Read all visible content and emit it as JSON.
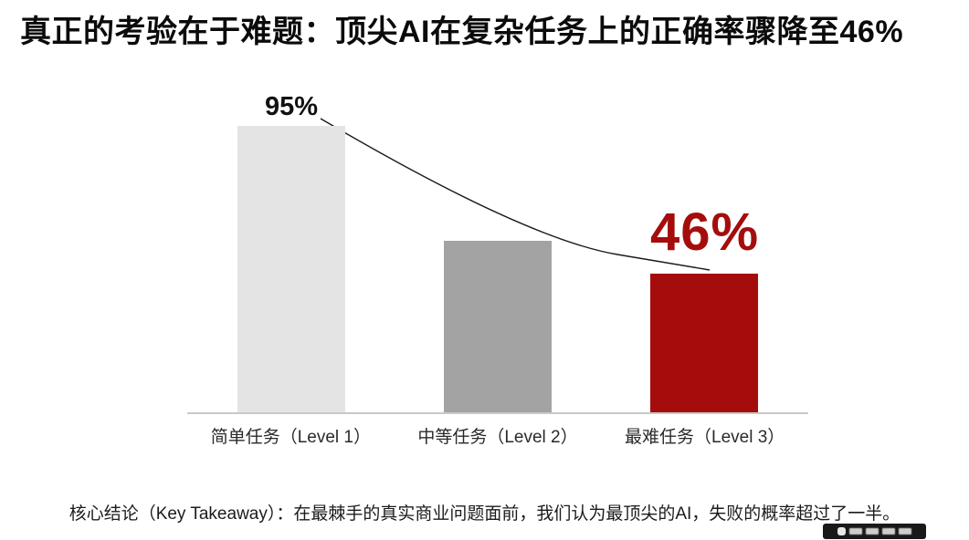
{
  "page": {
    "title": "真正的考验在于难题：顶尖AI在复杂任务上的正确率骤降至46%",
    "takeaway": "核心结论（Key Takeaway）：在最棘手的真实商业问题面前，我们认为最顶尖的AI，失败的概率超过了一半。"
  },
  "chart_data": {
    "type": "bar",
    "title": "真正的考验在于难题：顶尖AI在复杂任务上的正确率骤降至46%",
    "categories": [
      "简单任务（Level 1）",
      "中等任务（Level 2）",
      "最难任务（Level 3）"
    ],
    "values": [
      95,
      57,
      46
    ],
    "data_labels": [
      "95%",
      "",
      "46%"
    ],
    "value_note": "middle bar carries no data label in the image; 57 estimated from bar height",
    "ylim": [
      0,
      100
    ],
    "grid": false,
    "legend": "none",
    "bar_colors": [
      "#e4e4e4",
      "#a3a3a3",
      "#a50d0d"
    ],
    "label_colors": [
      "#111111",
      "#111111",
      "#a50d0d"
    ],
    "trend_line_color": "#1a1a1a",
    "axis_line_color": "#c9c9c9",
    "accent_red": "#a50d0d"
  }
}
